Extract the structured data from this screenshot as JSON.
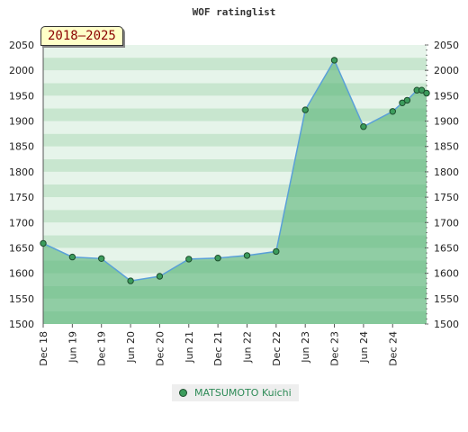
{
  "colors": {
    "area": "#5bb479",
    "line": "#5aa0d8",
    "marker": "#3c9c5c",
    "band_light": "#e6f4ea",
    "band_dark": "#c8e6cf",
    "badge_bg": "#ffffc8",
    "badge_text": "#8b0000",
    "legend_text": "#2e8b57"
  },
  "badge": {
    "text": "2018–2025"
  },
  "chart_data": {
    "type": "area",
    "title": "WOF ratinglist",
    "xlabel": "",
    "ylabel": "",
    "grid": true,
    "ylim": [
      1500,
      2050
    ],
    "yticks": [
      1500,
      1550,
      1600,
      1650,
      1700,
      1750,
      1800,
      1850,
      1900,
      1950,
      2000,
      2050
    ],
    "xlim": [
      "2018-12",
      "2025-07"
    ],
    "xticks": [
      "Dec 18",
      "Jun 19",
      "Dec 19",
      "Jun 20",
      "Dec 20",
      "Jun 21",
      "Dec 21",
      "Jun 22",
      "Dec 22",
      "Jun 23",
      "Dec 23",
      "Jun 24",
      "Dec 24"
    ],
    "legend_position": "bottom",
    "series": [
      {
        "name": "MATSUMOTO Kuichi",
        "points": [
          {
            "x": "2018-12",
            "y": 1659
          },
          {
            "x": "2019-06",
            "y": 1632
          },
          {
            "x": "2019-12",
            "y": 1629
          },
          {
            "x": "2020-06",
            "y": 1585
          },
          {
            "x": "2020-12",
            "y": 1594
          },
          {
            "x": "2021-06",
            "y": 1628
          },
          {
            "x": "2021-12",
            "y": 1630
          },
          {
            "x": "2022-06",
            "y": 1635
          },
          {
            "x": "2022-12",
            "y": 1643
          },
          {
            "x": "2023-06",
            "y": 1922
          },
          {
            "x": "2023-12",
            "y": 2020
          },
          {
            "x": "2024-06",
            "y": 1889
          },
          {
            "x": "2024-12",
            "y": 1919
          },
          {
            "x": "2025-02",
            "y": 1936
          },
          {
            "x": "2025-03",
            "y": 1941
          },
          {
            "x": "2025-05",
            "y": 1961
          },
          {
            "x": "2025-06",
            "y": 1961
          },
          {
            "x": "2025-07",
            "y": 1955
          }
        ]
      }
    ]
  }
}
